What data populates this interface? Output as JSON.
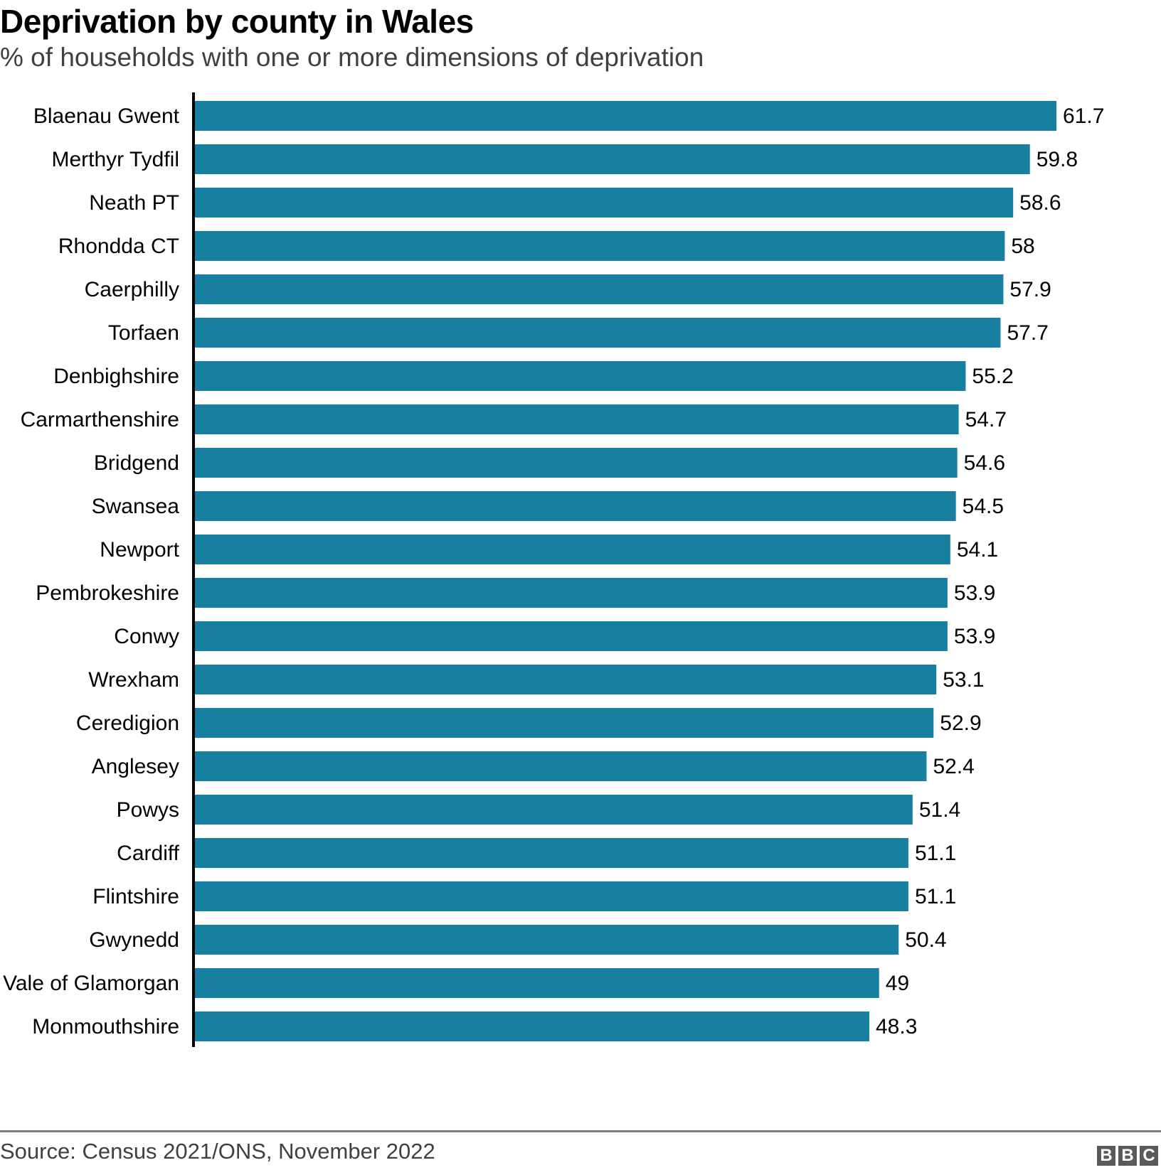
{
  "header": {
    "title": "Deprivation by county in Wales",
    "subtitle": "% of households with one or more dimensions of deprivation"
  },
  "footer": {
    "source": "Source: Census 2021/ONS, November 2022",
    "logo_letters": [
      "B",
      "B",
      "C"
    ],
    "logo_name": "BBC"
  },
  "colors": {
    "bar": "#1780a1",
    "axis": "#000000"
  },
  "chart_data": {
    "type": "bar",
    "orientation": "horizontal",
    "title": "Deprivation by county in Wales",
    "subtitle": "% of households with one or more dimensions of deprivation",
    "xlabel": "",
    "ylabel": "",
    "grid": false,
    "legend": "none",
    "xlim": [
      0,
      61.7
    ],
    "categories": [
      "Blaenau Gwent",
      "Merthyr Tydfil",
      "Neath PT",
      "Rhondda CT",
      "Caerphilly",
      "Torfaen",
      "Denbighshire",
      "Carmarthenshire",
      "Bridgend",
      "Swansea",
      "Newport",
      "Pembrokeshire",
      "Conwy",
      "Wrexham",
      "Ceredigion",
      "Anglesey",
      "Powys",
      "Cardiff",
      "Flintshire",
      "Gwynedd",
      "Vale of Glamorgan",
      "Monmouthshire"
    ],
    "values": [
      61.7,
      59.8,
      58.6,
      58,
      57.9,
      57.7,
      55.2,
      54.7,
      54.6,
      54.5,
      54.1,
      53.9,
      53.9,
      53.1,
      52.9,
      52.4,
      51.4,
      51.1,
      51.1,
      50.4,
      49,
      48.3
    ],
    "value_labels": [
      "61.7",
      "59.8",
      "58.6",
      "58",
      "57.9",
      "57.7",
      "55.2",
      "54.7",
      "54.6",
      "54.5",
      "54.1",
      "53.9",
      "53.9",
      "53.1",
      "52.9",
      "52.4",
      "51.4",
      "51.1",
      "51.1",
      "50.4",
      "49",
      "48.3"
    ],
    "source": "Source: Census 2021/ONS, November 2022"
  }
}
